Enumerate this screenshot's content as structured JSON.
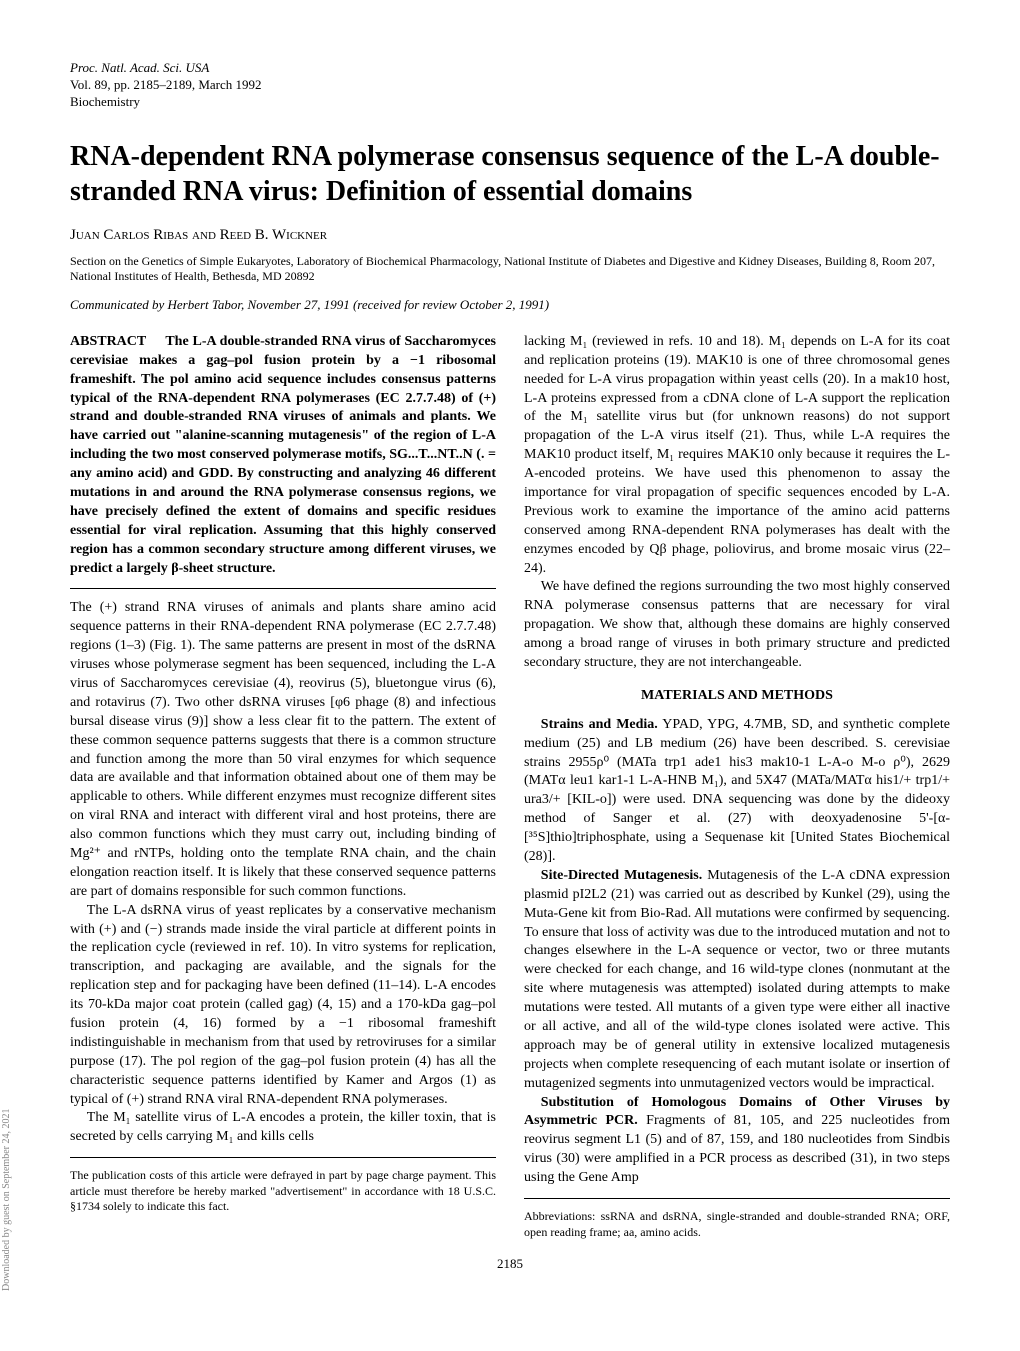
{
  "journal": {
    "line1": "Proc. Natl. Acad. Sci. USA",
    "line2": "Vol. 89, pp. 2185–2189, March 1992",
    "line3": "Biochemistry"
  },
  "title": "RNA-dependent RNA polymerase consensus sequence of the L-A double-stranded RNA virus: Definition of essential domains",
  "authors": "Juan Carlos Ribas and Reed B. Wickner",
  "affiliation": "Section on the Genetics of Simple Eukaryotes, Laboratory of Biochemical Pharmacology, National Institute of Diabetes and Digestive and Kidney Diseases, Building 8, Room 207, National Institutes of Health, Bethesda, MD 20892",
  "communicated": "Communicated by Herbert Tabor, November 27, 1991 (received for review October 2, 1991)",
  "abstract": {
    "label": "ABSTRACT",
    "text": "The L-A double-stranded RNA virus of Saccharomyces cerevisiae makes a gag–pol fusion protein by a −1 ribosomal frameshift. The pol amino acid sequence includes consensus patterns typical of the RNA-dependent RNA polymerases (EC 2.7.7.48) of (+) strand and double-stranded RNA viruses of animals and plants. We have carried out \"alanine-scanning mutagenesis\" of the region of L-A including the two most conserved polymerase motifs, SG...T...NT..N (. = any amino acid) and GDD. By constructing and analyzing 46 different mutations in and around the RNA polymerase consensus regions, we have precisely defined the extent of domains and specific residues essential for viral replication. Assuming that this highly conserved region has a common secondary structure among different viruses, we predict a largely β-sheet structure."
  },
  "left_paras": [
    "The (+) strand RNA viruses of animals and plants share amino acid sequence patterns in their RNA-dependent RNA polymerase (EC 2.7.7.48) regions (1–3) (Fig. 1). The same patterns are present in most of the dsRNA viruses whose polymerase segment has been sequenced, including the L-A virus of Saccharomyces cerevisiae (4), reovirus (5), bluetongue virus (6), and rotavirus (7). Two other dsRNA viruses [φ6 phage (8) and infectious bursal disease virus (9)] show a less clear fit to the pattern. The extent of these common sequence patterns suggests that there is a common structure and function among the more than 50 viral enzymes for which sequence data are available and that information obtained about one of them may be applicable to others. While different enzymes must recognize different sites on viral RNA and interact with different viral and host proteins, there are also common functions which they must carry out, including binding of Mg²⁺ and rNTPs, holding onto the template RNA chain, and the chain elongation reaction itself. It is likely that these conserved sequence patterns are part of domains responsible for such common functions.",
    "The L-A dsRNA virus of yeast replicates by a conservative mechanism with (+) and (−) strands made inside the viral particle at different points in the replication cycle (reviewed in ref. 10). In vitro systems for replication, transcription, and packaging are available, and the signals for the replication step and for packaging have been defined (11–14). L-A encodes its 70-kDa major coat protein (called gag) (4, 15) and a 170-kDa gag–pol fusion protein (4, 16) formed by a −1 ribosomal frameshift indistinguishable in mechanism from that used by retroviruses for a similar purpose (17). The pol region of the gag–pol fusion protein (4) has all the characteristic sequence patterns identified by Kamer and Argos (1) as typical of (+) strand RNA viral RNA-dependent RNA polymerases.",
    "The M₁ satellite virus of L-A encodes a protein, the killer toxin, that is secreted by cells carrying M₁ and kills cells"
  ],
  "left_footnote": "The publication costs of this article were defrayed in part by page charge payment. This article must therefore be hereby marked \"advertisement\" in accordance with 18 U.S.C. §1734 solely to indicate this fact.",
  "right_paras": [
    "lacking M₁ (reviewed in refs. 10 and 18). M₁ depends on L-A for its coat and replication proteins (19). MAK10 is one of three chromosomal genes needed for L-A virus propagation within yeast cells (20). In a mak10 host, L-A proteins expressed from a cDNA clone of L-A support the replication of the M₁ satellite virus but (for unknown reasons) do not support propagation of the L-A virus itself (21). Thus, while L-A requires the MAK10 product itself, M₁ requires MAK10 only because it requires the L-A-encoded proteins. We have used this phenomenon to assay the importance for viral propagation of specific sequences encoded by L-A. Previous work to examine the importance of the amino acid patterns conserved among RNA-dependent RNA polymerases has dealt with the enzymes encoded by Qβ phage, poliovirus, and brome mosaic virus (22–24).",
    "We have defined the regions surrounding the two most highly conserved RNA polymerase consensus patterns that are necessary for viral propagation. We show that, although these domains are highly conserved among a broad range of viruses in both primary structure and predicted secondary structure, they are not interchangeable."
  ],
  "materials_heading": "MATERIALS AND METHODS",
  "materials_paras": [
    {
      "runin": "Strains and Media.",
      "text": " YPAD, YPG, 4.7MB, SD, and synthetic complete medium (25) and LB medium (26) have been described. S. cerevisiae strains 2955ρ⁰ (MATa trp1 ade1 his3 mak10-1 L-A-o M-o ρ⁰), 2629 (MATα leu1 kar1-1 L-A-HNB M₁), and 5X47 (MATa/MATα his1/+ trp1/+ ura3/+ [KIL-o]) were used. DNA sequencing was done by the dideoxy method of Sanger et al. (27) with deoxyadenosine 5'-[α-[³⁵S]thio]triphosphate, using a Sequenase kit [United States Biochemical (28)]."
    },
    {
      "runin": "Site-Directed Mutagenesis.",
      "text": " Mutagenesis of the L-A cDNA expression plasmid pI2L2 (21) was carried out as described by Kunkel (29), using the Muta-Gene kit from Bio-Rad. All mutations were confirmed by sequencing. To ensure that loss of activity was due to the introduced mutation and not to changes elsewhere in the L-A sequence or vector, two or three mutants were checked for each change, and 16 wild-type clones (nonmutant at the site where mutagenesis was attempted) isolated during attempts to make mutations were tested. All mutants of a given type were either all inactive or all active, and all of the wild-type clones isolated were active. This approach may be of general utility in extensive localized mutagenesis projects when complete resequencing of each mutant isolate or insertion of mutagenized segments into unmutagenized vectors would be impractical."
    },
    {
      "runin": "Substitution of Homologous Domains of Other Viruses by Asymmetric PCR.",
      "text": " Fragments of 81, 105, and 225 nucleotides from reovirus segment L1 (5) and of 87, 159, and 180 nucleotides from Sindbis virus (30) were amplified in a PCR process as described (31), in two steps using the Gene Amp"
    }
  ],
  "right_footnote": "Abbreviations: ssRNA and dsRNA, single-stranded and double-stranded RNA; ORF, open reading frame; aa, amino acids.",
  "page_number": "2185",
  "sidebar": "Downloaded by guest on September 24, 2021"
}
